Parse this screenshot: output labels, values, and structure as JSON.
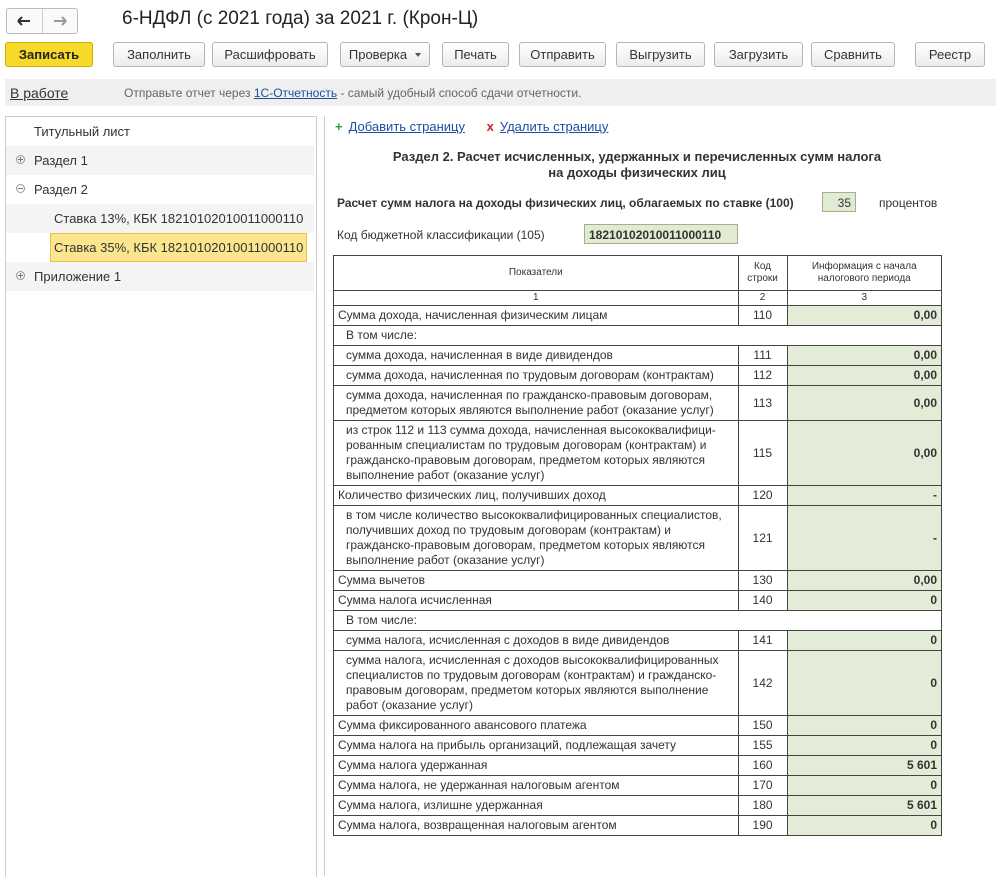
{
  "window": {
    "title": "6-НДФЛ (с 2021 года) за 2021 г. (Крон-Ц)"
  },
  "toolbar": {
    "buttons": [
      {
        "label": "Записать",
        "primary": true
      },
      {
        "label": "Заполнить"
      },
      {
        "label": "Расшифровать"
      },
      {
        "label": "Проверка",
        "dropdown": true
      },
      {
        "label": "Печать"
      },
      {
        "label": "Отправить"
      },
      {
        "label": "Выгрузить"
      },
      {
        "label": "Загрузить"
      },
      {
        "label": "Сравнить"
      },
      {
        "label": "Реестр"
      }
    ]
  },
  "status": {
    "state": "В работе",
    "hint_prefix": "Отправьте отчет через",
    "hint_link": "1С-Отчетность",
    "hint_suffix": "- самый удобный способ сдачи отчетности."
  },
  "tree": {
    "items": [
      {
        "label": "Титульный лист",
        "level": 0
      },
      {
        "label": "Раздел 1",
        "level": 0,
        "expandable": true,
        "expanded": false
      },
      {
        "label": "Раздел 2",
        "level": 0,
        "expandable": true,
        "expanded": true
      },
      {
        "label": "Ставка 13%, КБК 18210102010011000110",
        "level": 1
      },
      {
        "label": "Ставка 35%, КБК 18210102010011000110",
        "level": 1,
        "selected": true
      },
      {
        "label": "Приложение 1",
        "level": 0,
        "expandable": true,
        "expanded": false
      }
    ]
  },
  "actions": {
    "add": "Добавить страницу",
    "delete": "Удалить страницу"
  },
  "form": {
    "heading_line1": "Раздел 2. Расчет исчисленных, удержанных и перечисленных сумм налога",
    "heading_line2": "на доходы физических лиц",
    "rate_label": "Расчет сумм налога на доходы физических лиц, облагаемых по ставке  (100)",
    "rate_value": "35",
    "rate_unit": "процентов",
    "kbk_label": "Код бюджетной классификации   (105)",
    "kbk_value": "18210102010011000110"
  },
  "table": {
    "headers": [
      "Показатели",
      "Код строки",
      "Информация с начала налогового периода"
    ],
    "column_numbers": [
      "1",
      "2",
      "3"
    ],
    "rows": [
      {
        "label": "Сумма дохода, начисленная физическим лицам",
        "code": "110",
        "value": "0,00",
        "level": 0
      },
      {
        "label": "В том числе:",
        "level": 1
      },
      {
        "label": "сумма дохода, начисленная в виде дивидендов",
        "code": "111",
        "value": "0,00",
        "level": 1
      },
      {
        "label": "сумма дохода, начисленная по трудовым договорам (контрактам)",
        "code": "112",
        "value": "0,00",
        "level": 1
      },
      {
        "label": "сумма дохода, начисленная по гражданско-правовым договорам, предметом которых являются выполнение работ (оказание услуг)",
        "code": "113",
        "value": "0,00",
        "level": 1
      },
      {
        "label": "из строк 112 и 113 сумма дохода, начисленная высококвалифици-рованным специалистам по трудовым договорам (контрактам) и гражданско-правовым договорам, предметом которых являются выполнение работ (оказание услуг)",
        "code": "115",
        "value": "0,00",
        "level": 1
      },
      {
        "label": "Количество физических лиц, получивших доход",
        "code": "120",
        "value": "-",
        "level": 0
      },
      {
        "label": "в том числе количество высококвалифицированных специалистов, получивших доход по трудовым договорам (контрактам) и гражданско-правовым договорам, предметом которых являются выполнение работ (оказание услуг)",
        "code": "121",
        "value": "-",
        "level": 1
      },
      {
        "label": "Сумма вычетов",
        "code": "130",
        "value": "0,00",
        "level": 0
      },
      {
        "label": "Сумма налога исчисленная",
        "code": "140",
        "value": "0",
        "level": 0
      },
      {
        "label": "В том числе:",
        "level": 1
      },
      {
        "label": "сумма налога, исчисленная с доходов в виде дивидендов",
        "code": "141",
        "value": "0",
        "level": 1
      },
      {
        "label": "сумма налога, исчисленная с доходов высококвалифицированных специалистов по трудовым договорам (контрактам) и гражданско-правовым договорам, предметом которых являются выполнение работ (оказание услуг)",
        "code": "142",
        "value": "0",
        "level": 1
      },
      {
        "label": "Сумма фиксированного авансового платежа",
        "code": "150",
        "value": "0",
        "level": 0
      },
      {
        "label": "Сумма налога на прибыль организаций, подлежащая зачету",
        "code": "155",
        "value": "0",
        "level": 0
      },
      {
        "label": "Сумма налога удержанная",
        "code": "160",
        "value": "5 601",
        "level": 0
      },
      {
        "label": "Сумма налога, не удержанная налоговым агентом",
        "code": "170",
        "value": "0",
        "level": 0
      },
      {
        "label": "Сумма налога, излишне удержанная",
        "code": "180",
        "value": "5 601",
        "level": 0
      },
      {
        "label": "Сумма налога, возвращенная налоговым агентом",
        "code": "190",
        "value": "0",
        "level": 0
      }
    ]
  }
}
